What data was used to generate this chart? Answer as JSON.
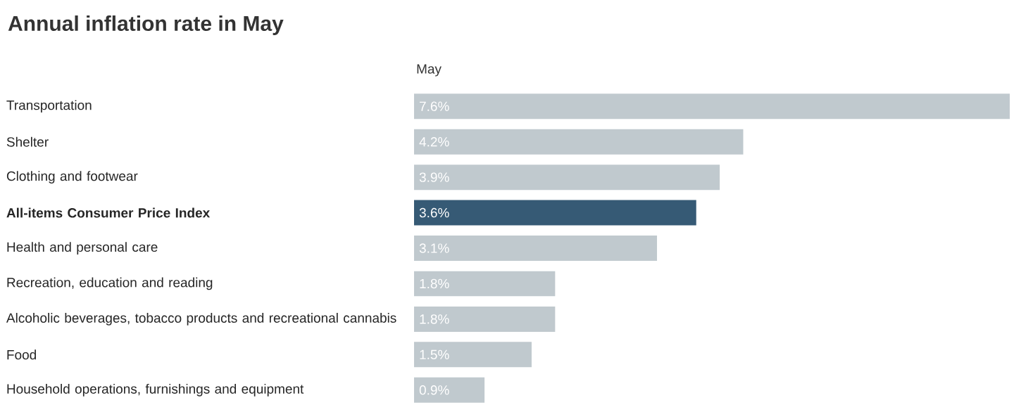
{
  "chart_data": {
    "type": "bar",
    "orientation": "horizontal",
    "title": "Annual inflation rate in May",
    "xlabel": "May",
    "categories": [
      "Transportation",
      "Shelter",
      "Clothing and footwear",
      "**All-items Consumer Price Index**",
      "Health and personal care",
      "Recreation, education and reading",
      "Alcoholic beverages, tobacco products and recreational cannabis",
      "Food",
      "Household operations, furnishings and equipment"
    ],
    "values": [
      7.6,
      4.2,
      3.9,
      3.6,
      3.1,
      1.8,
      1.8,
      1.5,
      0.9
    ],
    "value_labels": [
      "7.6%",
      "4.2%",
      "3.9%",
      "3.6%",
      "3.1%",
      "1.8%",
      "1.8%",
      "1.5%",
      "0.9%"
    ],
    "colors": [
      "#c0c9ce",
      "#c0c9ce",
      "#c0c9ce",
      "#365a75",
      "#c0c9ce",
      "#c0c9ce",
      "#c0c9ce",
      "#c0c9ce",
      "#c0c9ce"
    ],
    "xlim": [
      0,
      7.6
    ],
    "tick_labels": "y"
  }
}
